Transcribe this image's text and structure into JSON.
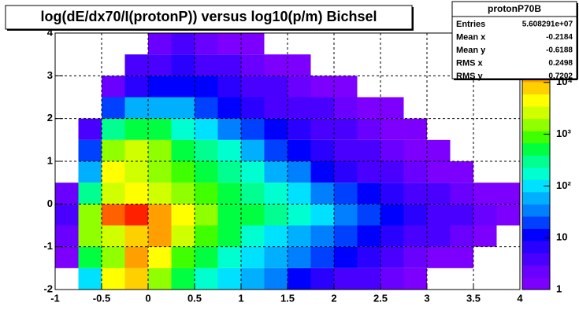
{
  "chart_data": {
    "type": "heatmap2d",
    "title": "log(dE/dx70/I(protonP)) versus log10(p/m) Bichsel",
    "xlim": [
      -1,
      4
    ],
    "ylim": [
      -2,
      4
    ],
    "xticks": [
      -1,
      -0.5,
      0,
      0.5,
      1,
      1.5,
      2,
      2.5,
      3,
      3.5,
      4
    ],
    "yticks": [
      -2,
      -1,
      0,
      1,
      2,
      3,
      4
    ],
    "grid": true,
    "log_z": true,
    "zlim": [
      1,
      90000
    ],
    "zticks": [
      1,
      10,
      {
        "value": 100,
        "label": "10²"
      },
      {
        "value": 1000,
        "label": "10³"
      },
      {
        "value": 10000,
        "label": "10⁴"
      }
    ],
    "palette": [
      "#7d00ff",
      "#6a00ff",
      "#4a00ff",
      "#2a00ff",
      "#0000ff",
      "#0040ff",
      "#0080ff",
      "#00b0ff",
      "#00e0ff",
      "#00ffd0",
      "#00ff90",
      "#00ff40",
      "#40ff00",
      "#90ff00",
      "#d0ff00",
      "#ffff00",
      "#ffd000",
      "#ffa000",
      "#ff6000",
      "#ff2000",
      "#e00000"
    ],
    "xbins": [
      -1,
      -0.75,
      -0.5,
      -0.25,
      0,
      0.25,
      0.5,
      0.75,
      1,
      1.25,
      1.5,
      1.75,
      2,
      2.25,
      2.5,
      2.75,
      3,
      3.25,
      3.5,
      3.75,
      4
    ],
    "ybins": [
      -2,
      -1.5,
      -1,
      -0.5,
      0,
      0.5,
      1,
      1.5,
      2,
      2.5,
      3,
      3.5,
      4
    ],
    "z": [
      [
        0,
        100,
        4000,
        8000,
        1500,
        500,
        200,
        100,
        50,
        30,
        15,
        8,
        5,
        3,
        2,
        1,
        0,
        0,
        0,
        0
      ],
      [
        1,
        500,
        1500,
        12000,
        5000,
        1000,
        400,
        200,
        100,
        60,
        30,
        20,
        10,
        6,
        4,
        2,
        1,
        1,
        0,
        0
      ],
      [
        2,
        1500,
        3000,
        6000,
        15000,
        2500,
        800,
        400,
        200,
        100,
        60,
        30,
        20,
        12,
        8,
        5,
        3,
        2,
        1,
        0
      ],
      [
        3,
        2000,
        20000,
        40000,
        12000,
        4000,
        1200,
        600,
        400,
        250,
        150,
        80,
        40,
        25,
        15,
        8,
        5,
        3,
        2,
        1
      ],
      [
        2,
        300,
        3000,
        4000,
        2500,
        1500,
        700,
        400,
        250,
        150,
        80,
        40,
        20,
        12,
        8,
        5,
        3,
        2,
        1,
        1
      ],
      [
        0,
        60,
        4000,
        3000,
        1500,
        800,
        500,
        300,
        150,
        60,
        30,
        15,
        8,
        5,
        3,
        2,
        1,
        1,
        0,
        0
      ],
      [
        0,
        20,
        2000,
        3000,
        1500,
        600,
        300,
        150,
        60,
        25,
        12,
        6,
        4,
        3,
        2,
        1,
        1,
        0,
        0,
        0
      ],
      [
        0,
        5,
        300,
        600,
        400,
        200,
        100,
        40,
        20,
        10,
        6,
        4,
        3,
        2,
        1,
        1,
        0,
        0,
        0,
        0
      ],
      [
        0,
        0,
        20,
        60,
        60,
        45,
        25,
        15,
        8,
        5,
        4,
        3,
        2,
        1,
        1,
        0,
        0,
        0,
        0,
        0
      ],
      [
        0,
        0,
        2,
        8,
        15,
        14,
        10,
        6,
        4,
        3,
        2,
        1,
        1,
        0,
        0,
        0,
        0,
        0,
        0,
        0
      ],
      [
        0,
        0,
        0,
        3,
        5,
        6,
        4,
        3,
        2,
        1,
        1,
        0,
        0,
        0,
        0,
        0,
        0,
        0,
        0,
        0
      ],
      [
        0,
        0,
        0,
        0,
        2,
        3,
        2,
        1,
        1,
        0,
        0,
        0,
        0,
        0,
        0,
        0,
        0,
        0,
        0,
        0
      ]
    ],
    "stats": {
      "title": "protonP70B",
      "rows": [
        {
          "label": "Entries",
          "value": "5.608291e+07"
        },
        {
          "label": "Mean x",
          "value": "-0.2184"
        },
        {
          "label": "Mean y",
          "value": "-0.6188"
        },
        {
          "label": "RMS x",
          "value": "0.2498"
        },
        {
          "label": "RMS y",
          "value": "0.7202"
        }
      ]
    }
  }
}
